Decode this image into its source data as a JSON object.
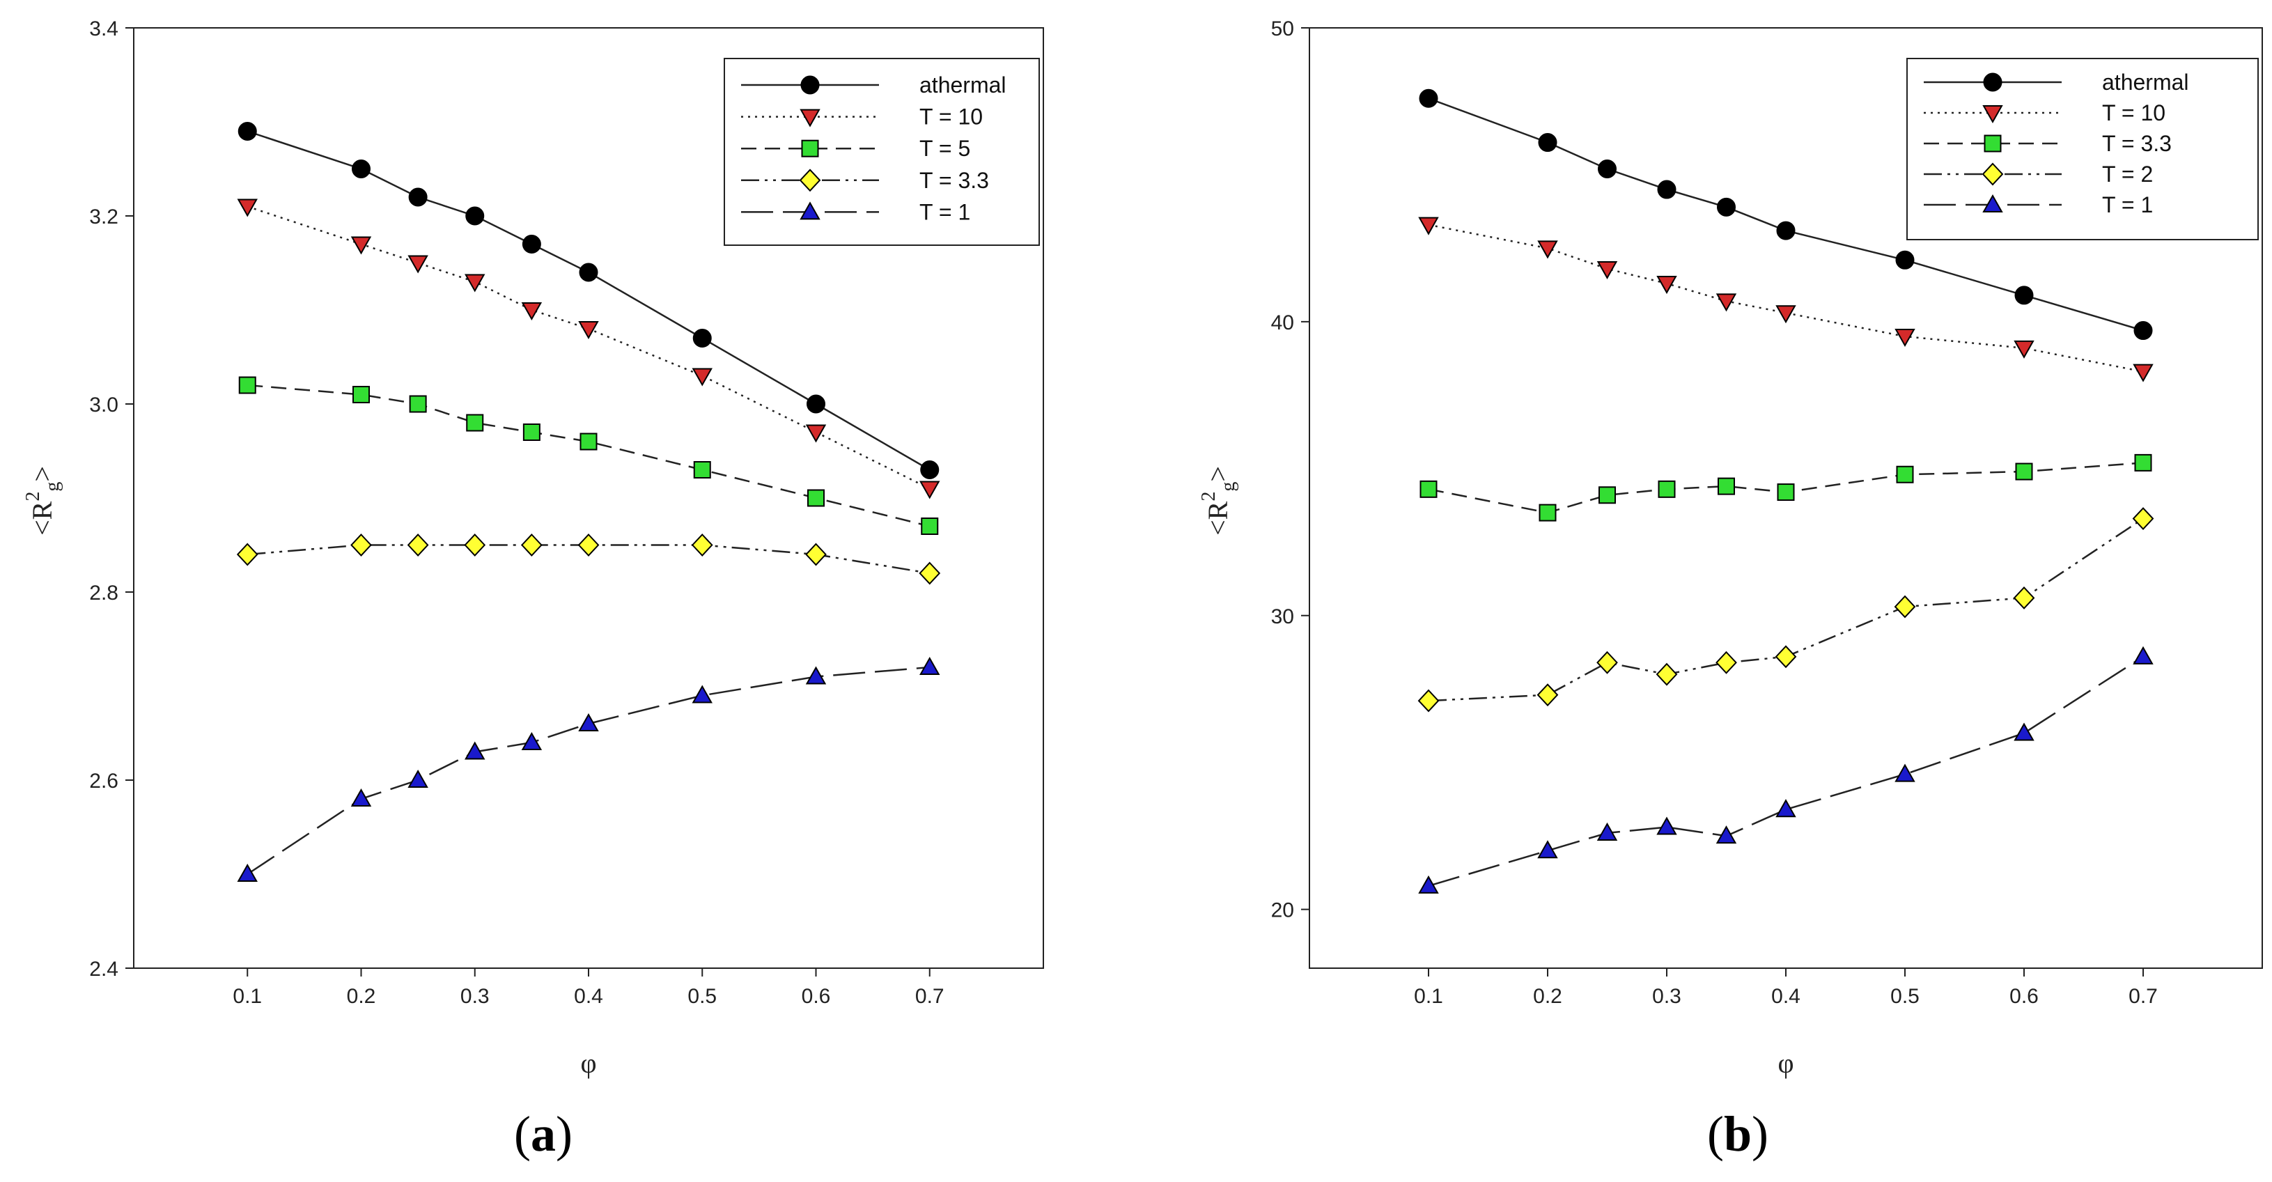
{
  "chart_data": [
    {
      "type": "line",
      "panel_label": "a",
      "xlabel": "φ",
      "ylabel_base": "<R",
      "ylabel_sub": "g",
      "ylabel_sup": "2",
      "ylabel_end": ">",
      "xlim": [
        0.0,
        0.8
      ],
      "ylim": [
        2.4,
        3.4
      ],
      "x_ticks": [
        0.1,
        0.2,
        0.3,
        0.4,
        0.5,
        0.6,
        0.7
      ],
      "y_ticks": [
        2.4,
        2.6,
        2.8,
        3.0,
        3.2,
        3.4
      ],
      "x_tick_labels": [
        "0.1",
        "0.2",
        "0.3",
        "0.4",
        "0.5",
        "0.6",
        "0.7"
      ],
      "y_tick_labels": [
        "2.4",
        "2.6",
        "2.8",
        "3.0",
        "3.2",
        "3.4"
      ],
      "legend_position": "top-right",
      "x": [
        0.1,
        0.2,
        0.25,
        0.3,
        0.35,
        0.4,
        0.5,
        0.6,
        0.7
      ],
      "series": [
        {
          "name": "athermal",
          "marker": "circle",
          "color": "#000000",
          "dash": "solid",
          "values": [
            3.29,
            3.25,
            3.22,
            3.2,
            3.17,
            3.14,
            3.07,
            3.0,
            2.93
          ]
        },
        {
          "name": "T = 10",
          "marker": "triangle-down",
          "color": "#d42a2a",
          "dash": "dotted",
          "values": [
            3.21,
            3.17,
            3.15,
            3.13,
            3.1,
            3.08,
            3.03,
            2.97,
            2.91
          ]
        },
        {
          "name": "T = 5",
          "marker": "square",
          "color": "#33dd33",
          "dash": "short-dash",
          "values": [
            3.02,
            3.01,
            3.0,
            2.98,
            2.97,
            2.96,
            2.93,
            2.9,
            2.87
          ]
        },
        {
          "name": "T = 3.3",
          "marker": "diamond",
          "color": "#ffff33",
          "dash": "dash-dot-dot",
          "values": [
            2.84,
            2.85,
            2.85,
            2.85,
            2.85,
            2.85,
            2.85,
            2.84,
            2.82
          ]
        },
        {
          "name": "T = 1",
          "marker": "triangle-up",
          "color": "#1a1acc",
          "dash": "long-dash",
          "values": [
            2.5,
            2.58,
            2.6,
            2.63,
            2.64,
            2.66,
            2.69,
            2.71,
            2.72
          ]
        }
      ]
    },
    {
      "type": "line",
      "panel_label": "b",
      "xlabel": "φ",
      "ylabel_base": "<R",
      "ylabel_sub": "g",
      "ylabel_sup": "2",
      "ylabel_end": ">",
      "xlim": [
        0.0,
        0.8
      ],
      "ylim": [
        18,
        50
      ],
      "x_ticks": [
        0.1,
        0.2,
        0.3,
        0.4,
        0.5,
        0.6,
        0.7
      ],
      "y_ticks": [
        20,
        30,
        40,
        50
      ],
      "x_tick_labels": [
        "0.1",
        "0.2",
        "0.3",
        "0.4",
        "0.5",
        "0.6",
        "0.7"
      ],
      "y_tick_labels": [
        "20",
        "30",
        "40",
        "50"
      ],
      "legend_position": "top-right",
      "x": [
        0.1,
        0.2,
        0.25,
        0.3,
        0.35,
        0.4,
        0.5,
        0.6,
        0.7
      ],
      "series": [
        {
          "name": "athermal",
          "marker": "circle",
          "color": "#000000",
          "dash": "solid",
          "values": [
            47.6,
            46.1,
            45.2,
            44.5,
            43.9,
            43.1,
            42.1,
            40.9,
            39.7
          ]
        },
        {
          "name": "T = 10",
          "marker": "triangle-down",
          "color": "#d42a2a",
          "dash": "dotted",
          "values": [
            43.3,
            42.5,
            41.8,
            41.3,
            40.7,
            40.3,
            39.5,
            39.1,
            38.3
          ]
        },
        {
          "name": "T = 3.3",
          "marker": "square",
          "color": "#33dd33",
          "dash": "short-dash",
          "values": [
            34.3,
            33.5,
            34.1,
            34.3,
            34.4,
            34.2,
            34.8,
            34.9,
            35.2
          ]
        },
        {
          "name": "T = 2",
          "marker": "diamond",
          "color": "#ffff33",
          "dash": "dash-dot-dot",
          "values": [
            27.1,
            27.3,
            28.4,
            28.0,
            28.4,
            28.6,
            30.3,
            30.6,
            33.3
          ]
        },
        {
          "name": "T = 1",
          "marker": "triangle-up",
          "color": "#1a1acc",
          "dash": "long-dash",
          "values": [
            20.8,
            22.0,
            22.6,
            22.8,
            22.5,
            23.4,
            24.6,
            26.0,
            28.6
          ]
        }
      ]
    }
  ],
  "captions": [
    {
      "open": "(",
      "letter": "a",
      "close": ")"
    },
    {
      "open": "(",
      "letter": "b",
      "close": ")"
    }
  ]
}
